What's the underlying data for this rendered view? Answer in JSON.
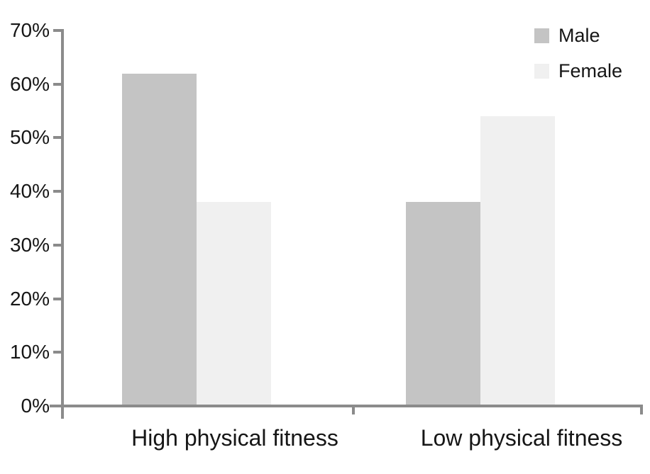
{
  "chart_data": {
    "type": "bar",
    "title": "",
    "xlabel": "",
    "ylabel": "",
    "categories": [
      "High physical fitness",
      "Low physical fitness"
    ],
    "series": [
      {
        "name": "Male",
        "color": "#c4c4c4",
        "values": [
          62,
          38
        ]
      },
      {
        "name": "Female",
        "color": "#f0f0f0",
        "values": [
          38,
          54
        ]
      }
    ],
    "y_ticks": [
      "0%",
      "10%",
      "20%",
      "30%",
      "40%",
      "50%",
      "60%",
      "70%"
    ],
    "y_tick_values": [
      0,
      10,
      20,
      30,
      40,
      50,
      60,
      70
    ],
    "ylim": [
      0,
      70
    ],
    "grid": false,
    "legend_position": "top-right",
    "legend": [
      "Male",
      "Female"
    ]
  },
  "colors": {
    "background": "#ffffff",
    "axis": "#8b8b8b",
    "text": "#161616",
    "male_bar": "#c4c4c4",
    "female_bar": "#f0f0f0"
  }
}
